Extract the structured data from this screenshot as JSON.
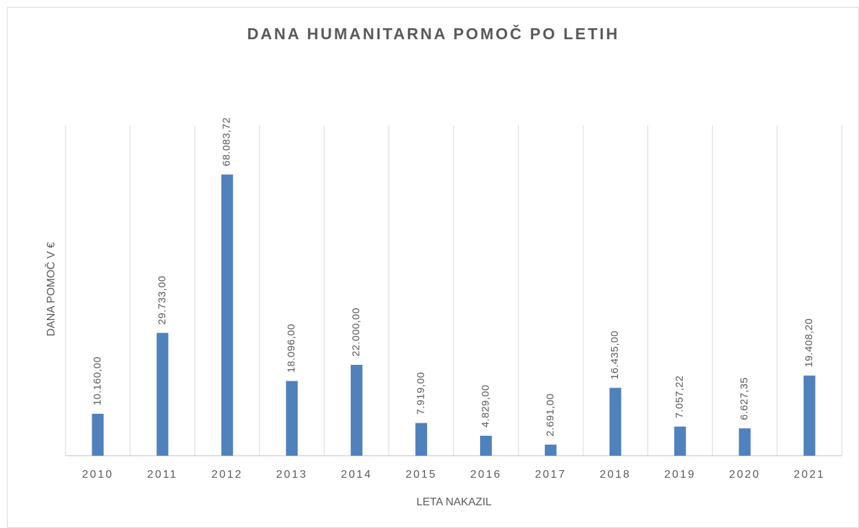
{
  "chart_data": {
    "type": "bar",
    "title": "DANA HUMANITARNA POMOČ PO LETIH",
    "x_label": "LETA NAKAZIL",
    "y_label": "DANA POMOČ V €",
    "categories": [
      "2010",
      "2011",
      "2012",
      "2013",
      "2014",
      "2015",
      "2016",
      "2017",
      "2018",
      "2019",
      "2020",
      "2021"
    ],
    "values": [
      10160,
      29733,
      68083.72,
      18096,
      22000,
      7919,
      4829,
      2691,
      16435,
      7057.22,
      6627.35,
      19408.2
    ],
    "value_labels": [
      "10.160,00",
      "29.733,00",
      "68.083,72",
      "18.096,00",
      "22.000,00",
      "7.919,00",
      "4.829,00",
      "2.691,00",
      "16.435,00",
      "7.057,22",
      "6.627,35",
      "19.408,20"
    ],
    "color": "#4f81bd",
    "ylim": [
      0,
      80000
    ],
    "grid": true
  }
}
